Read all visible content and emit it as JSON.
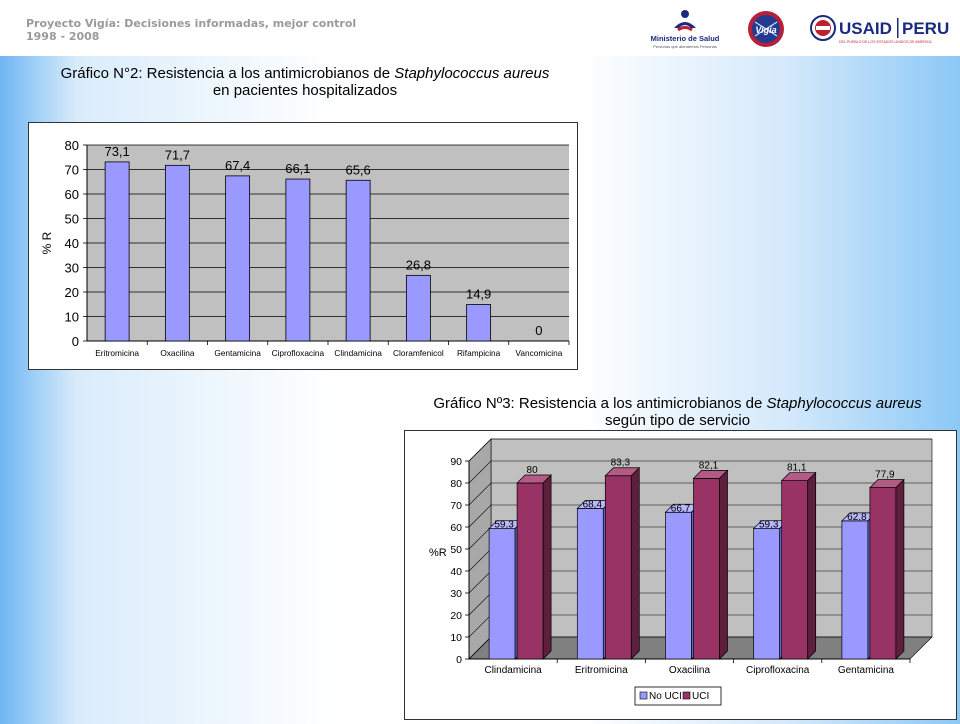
{
  "header": {
    "title": "Proyecto Vigía: Decisiones informadas, mejor control",
    "years": "1998 - 2008",
    "logos": {
      "minsa_name": "Ministerio de Salud",
      "minsa_tagline": "Personas que atendemos Personas",
      "vigia_name": "Vigía",
      "usaid_name": "USAID",
      "usaid_country": "PERU",
      "usaid_tagline": "DEL PUEBLO DE LOS ESTADOS UNIDOS DE AMERICA"
    }
  },
  "chart1_title": {
    "line1_prefix": "Gráfico N°2: Resistencia a los antimicrobianos de ",
    "line1_italic": "Staphylococcus aureus",
    "line2": "en pacientes hospitalizados"
  },
  "chart2_title": {
    "line1_prefix": "Gráfico Nº3: Resistencia a los antimicrobianos de ",
    "line1_italic": "Staphylococcus aureus",
    "line2": "según tipo de servicio"
  },
  "colors": {
    "bar_blue": "#9999ff",
    "bar_maroon": "#993366",
    "plot_bg": "#c0c0c0",
    "floor_gray": "#808080"
  },
  "chart_data": [
    {
      "type": "bar",
      "categories": [
        "Eritromicina",
        "Oxacilina",
        "Gentamicina",
        "Ciprofloxacina",
        "Clindamicina",
        "Cloramfenicol",
        "Rifampicina",
        "Vancomicina"
      ],
      "values": [
        73.1,
        71.7,
        67.4,
        66.1,
        65.6,
        26.8,
        14.9,
        0
      ],
      "value_labels": [
        "73,1",
        "71,7",
        "67,4",
        "66,1",
        "65,6",
        "26,8",
        "14,9",
        "0"
      ],
      "ylabel": "% R",
      "ylim": [
        0,
        80
      ],
      "yticks": [
        0,
        10,
        20,
        30,
        40,
        50,
        60,
        70,
        80
      ],
      "grid": true
    },
    {
      "type": "bar",
      "categories": [
        "Clindamicina",
        "Eritromicina",
        "Oxacilina",
        "Ciprofloxacina",
        "Gentamicina"
      ],
      "series": [
        {
          "name": "No UCI",
          "values": [
            59.3,
            68.4,
            66.7,
            59.3,
            62.8
          ],
          "labels": [
            "59,3",
            "68,4",
            "66,7",
            "59,3",
            "62,8"
          ]
        },
        {
          "name": "UCI",
          "values": [
            80,
            83.3,
            82.1,
            81.1,
            77.9
          ],
          "labels": [
            "80",
            "83,3",
            "82,1",
            "81,1",
            "77,9"
          ]
        }
      ],
      "ylabel": "%R",
      "ylim": [
        0,
        90
      ],
      "yticks": [
        0,
        10,
        20,
        30,
        40,
        50,
        60,
        70,
        80,
        90
      ],
      "grid": true,
      "legend": "bottom"
    }
  ]
}
